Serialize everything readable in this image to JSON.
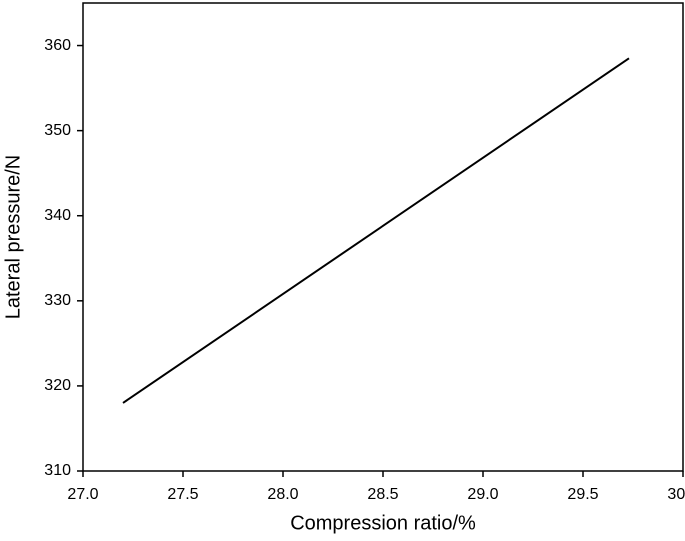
{
  "chart_data": {
    "type": "line",
    "x_label": "Compression ratio/%",
    "y_label": "Lateral pressure/N",
    "series": [
      {
        "x": [
          27.2,
          29.73
        ],
        "values": [
          318,
          358.5
        ],
        "color": "#000000"
      }
    ],
    "xlim": [
      27.0,
      30.0
    ],
    "xticks": [
      {
        "value": 27.0,
        "label": "27.0"
      },
      {
        "value": 27.5,
        "label": "27.5"
      },
      {
        "value": 28.0,
        "label": "28.0"
      },
      {
        "value": 28.5,
        "label": "28.5"
      },
      {
        "value": 29.0,
        "label": "29.0"
      },
      {
        "value": 29.5,
        "label": "29.5"
      },
      {
        "value": 30.0,
        "label": "30.0"
      }
    ],
    "ylim": [
      310,
      365
    ],
    "yticks": [
      310,
      320,
      330,
      340,
      350,
      360
    ],
    "grid": false
  }
}
